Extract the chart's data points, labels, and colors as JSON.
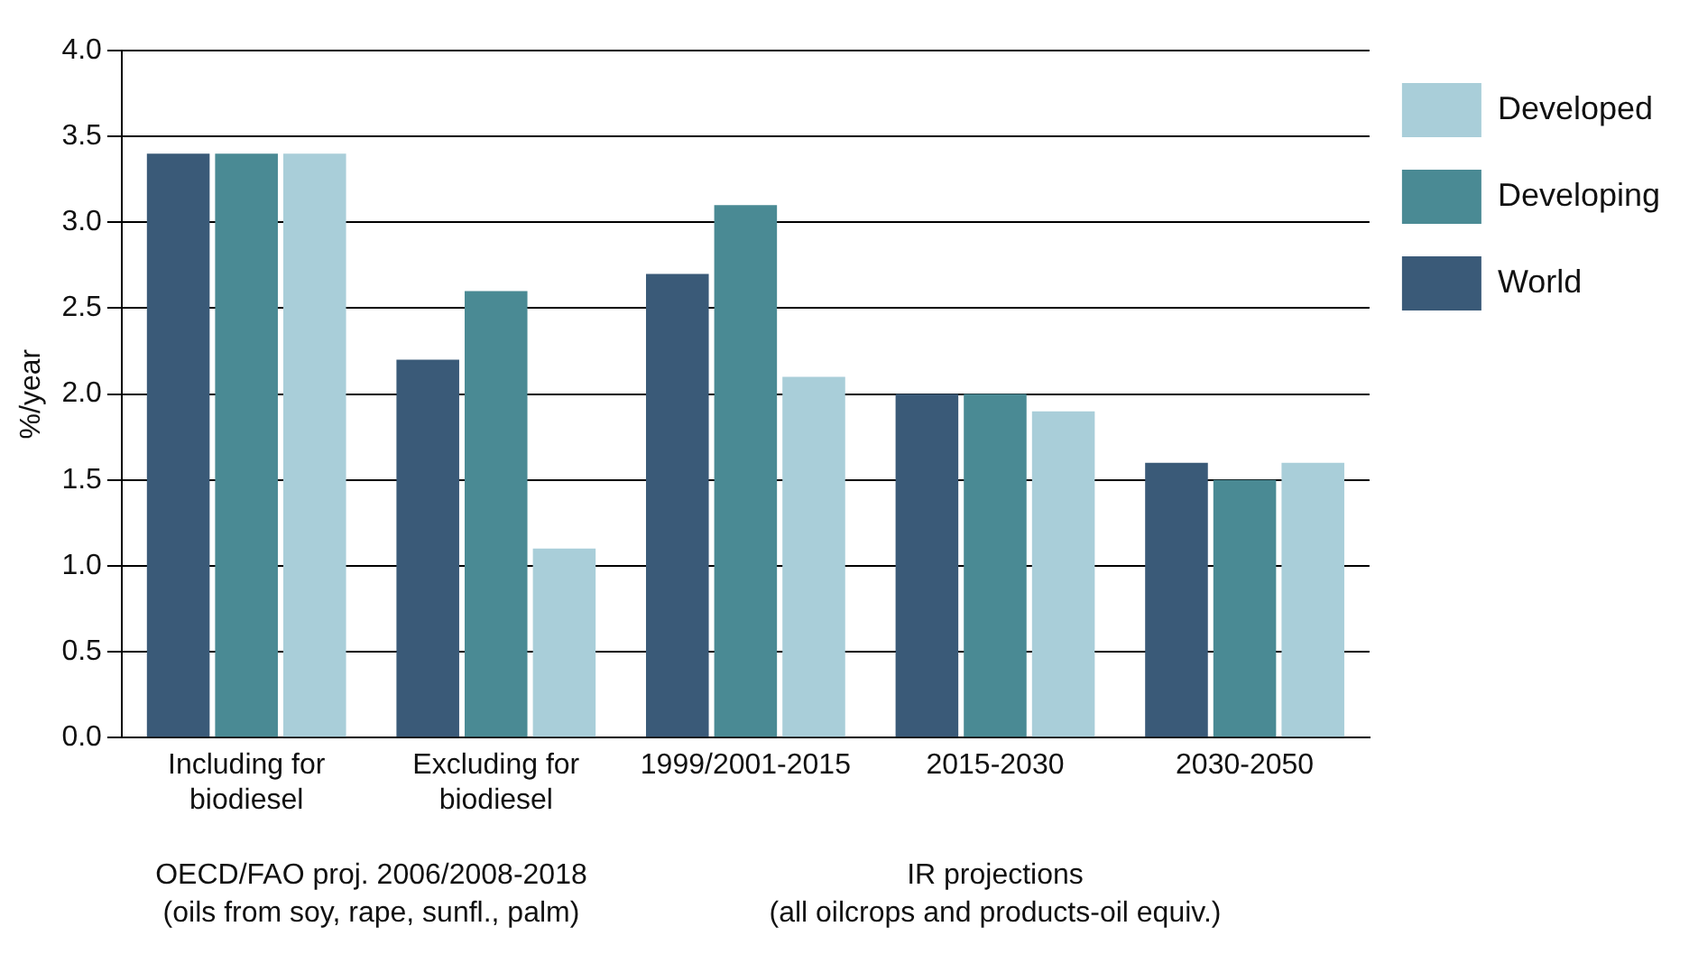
{
  "chart_data": {
    "type": "bar",
    "ylabel": "%/year",
    "categories": [
      "Including for\nbiodiesel",
      "Excluding for\nbiodiesel",
      "1999/2001-2015",
      "2015-2030",
      "2030-2050"
    ],
    "series": [
      {
        "name": "World",
        "color": "#3a5a78",
        "values": [
          3.4,
          2.2,
          2.7,
          2.0,
          1.6
        ]
      },
      {
        "name": "Developing",
        "color": "#4a8a94",
        "values": [
          3.4,
          2.6,
          3.1,
          2.0,
          1.5
        ]
      },
      {
        "name": "Developed",
        "color": "#a9ced9",
        "values": [
          3.4,
          1.1,
          2.1,
          1.9,
          1.6
        ]
      }
    ],
    "ylim": [
      0,
      4
    ],
    "yticks": [
      {
        "value": 0,
        "label": "0.0"
      },
      {
        "value": 0.5,
        "label": "0.5"
      },
      {
        "value": 1,
        "label": "1.0"
      },
      {
        "value": 1.5,
        "label": "1.5"
      },
      {
        "value": 2,
        "label": "2.0"
      },
      {
        "value": 2.5,
        "label": "2.5"
      },
      {
        "value": 3,
        "label": "3.0"
      },
      {
        "value": 3.5,
        "label": "3.5"
      },
      {
        "value": 4,
        "label": "4.0"
      }
    ],
    "grid": "y",
    "legend": "top right",
    "annotations": [
      "OECD/FAO proj. 2006/2008-2018\n(oils from soy, rape, sunfl., palm)",
      "IR projections\n(all oilcrops and products-oil equiv.)"
    ]
  }
}
